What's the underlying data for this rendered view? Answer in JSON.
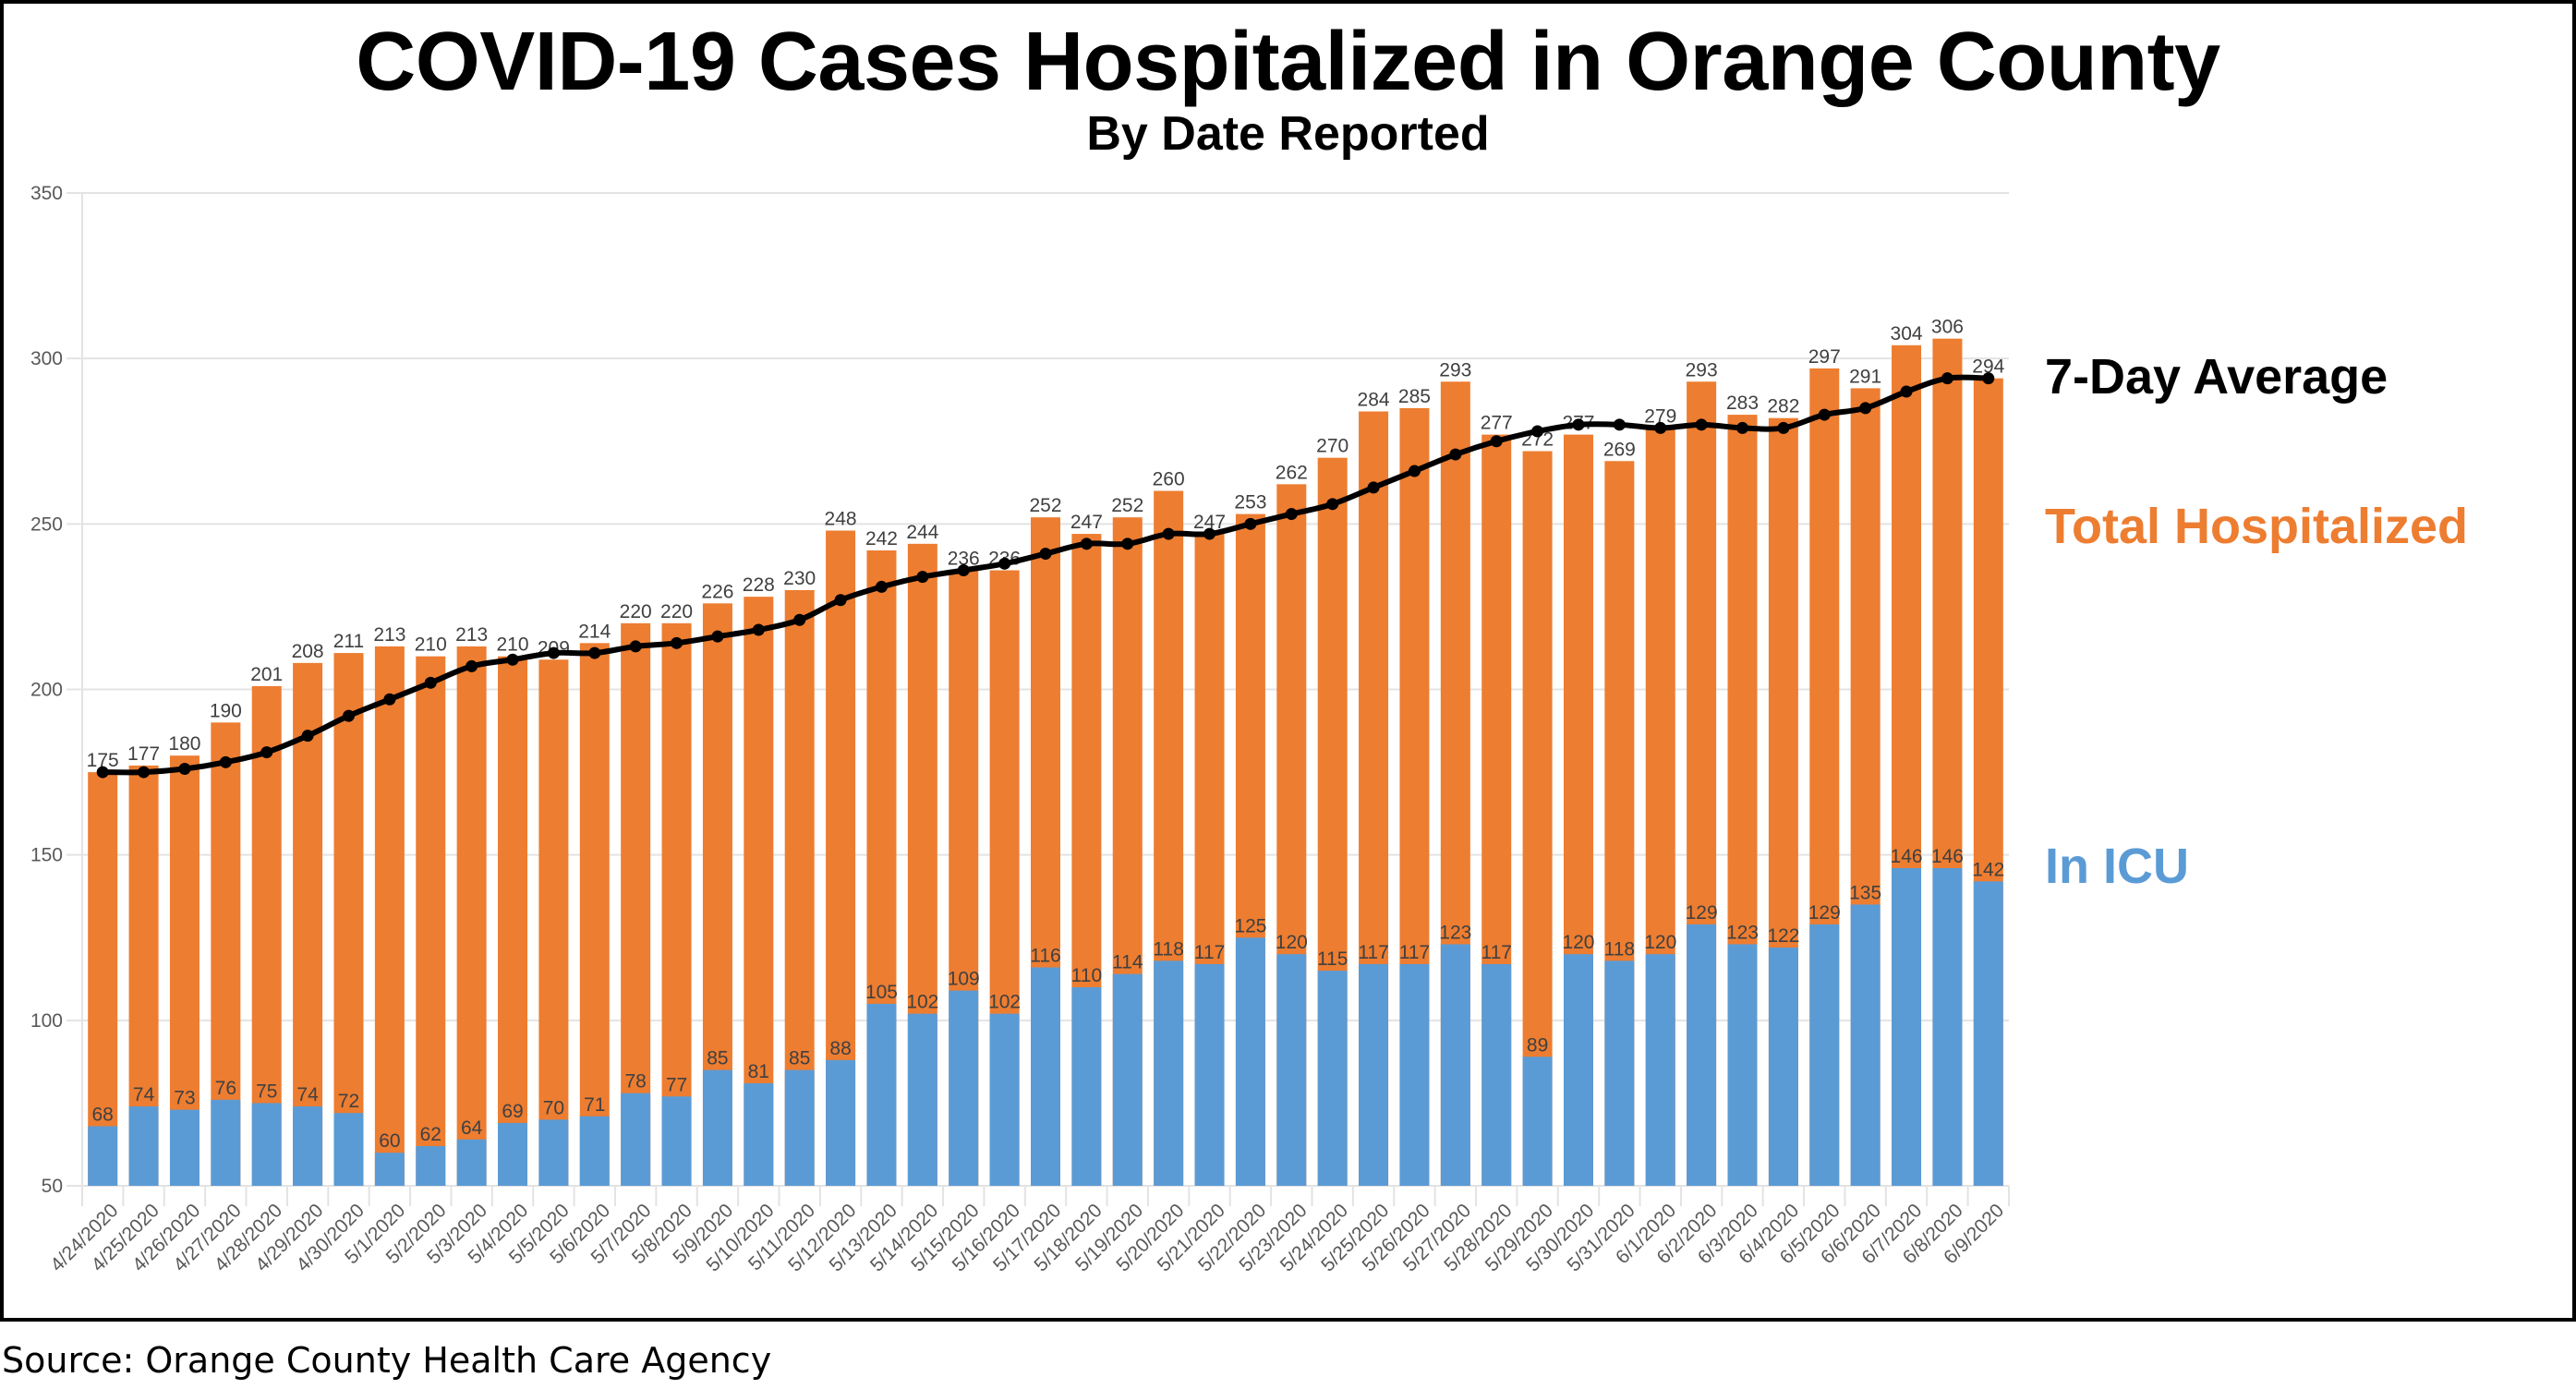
{
  "chart_data": {
    "type": "bar",
    "stacked": true,
    "title": "COVID-19 Cases Hospitalized in Orange County",
    "subtitle": "By Date Reported",
    "xlabel": "",
    "ylabel": "",
    "ylim": [
      50,
      350
    ],
    "yticks": [
      50,
      100,
      150,
      200,
      250,
      300,
      350
    ],
    "grid": true,
    "legend_position": "right",
    "categories": [
      "4/24/2020",
      "4/25/2020",
      "4/26/2020",
      "4/27/2020",
      "4/28/2020",
      "4/29/2020",
      "4/30/2020",
      "5/1/2020",
      "5/2/2020",
      "5/3/2020",
      "5/4/2020",
      "5/5/2020",
      "5/6/2020",
      "5/7/2020",
      "5/8/2020",
      "5/9/2020",
      "5/10/2020",
      "5/11/2020",
      "5/12/2020",
      "5/13/2020",
      "5/14/2020",
      "5/15/2020",
      "5/16/2020",
      "5/17/2020",
      "5/18/2020",
      "5/19/2020",
      "5/20/2020",
      "5/21/2020",
      "5/22/2020",
      "5/23/2020",
      "5/24/2020",
      "5/25/2020",
      "5/26/2020",
      "5/27/2020",
      "5/28/2020",
      "5/29/2020",
      "5/30/2020",
      "5/31/2020",
      "6/1/2020",
      "6/2/2020",
      "6/3/2020",
      "6/4/2020",
      "6/5/2020",
      "6/6/2020",
      "6/7/2020",
      "6/8/2020",
      "6/9/2020"
    ],
    "series": [
      {
        "name": "Total Hospitalized",
        "type": "bar",
        "color": "#ED7D31",
        "values": [
          175,
          177,
          180,
          190,
          201,
          208,
          211,
          213,
          210,
          213,
          210,
          209,
          214,
          220,
          220,
          226,
          228,
          230,
          248,
          242,
          244,
          236,
          236,
          252,
          247,
          252,
          260,
          247,
          253,
          262,
          270,
          284,
          285,
          293,
          277,
          272,
          277,
          269,
          279,
          293,
          283,
          282,
          297,
          291,
          304,
          306,
          294
        ]
      },
      {
        "name": "In ICU",
        "type": "bar",
        "color": "#5B9BD5",
        "values": [
          68,
          74,
          73,
          76,
          75,
          74,
          72,
          60,
          62,
          64,
          69,
          70,
          71,
          78,
          77,
          85,
          81,
          85,
          88,
          105,
          102,
          109,
          102,
          116,
          110,
          114,
          118,
          117,
          125,
          120,
          115,
          117,
          117,
          123,
          117,
          89,
          120,
          118,
          120,
          129,
          123,
          122,
          129,
          135,
          146,
          146,
          142
        ]
      },
      {
        "name": "7-Day Average",
        "type": "line",
        "color": "#000000",
        "values": [
          175,
          175,
          176,
          178,
          181,
          186,
          192,
          197,
          202,
          207,
          209,
          211,
          211,
          213,
          214,
          216,
          218,
          221,
          227,
          231,
          234,
          236,
          238,
          241,
          244,
          244,
          247,
          247,
          250,
          253,
          256,
          261,
          266,
          271,
          275,
          278,
          280,
          280,
          279,
          280,
          279,
          279,
          283,
          285,
          290,
          294,
          294
        ]
      }
    ]
  },
  "legend": {
    "average_label": "7-Day Average",
    "total_label": "Total Hospitalized",
    "icu_label": "In ICU"
  },
  "source": "Source: Orange County Health Care Agency",
  "colors": {
    "total": "#ED7D31",
    "icu": "#5B9BD5",
    "average": "#000000",
    "grid": "#E3E3E3",
    "axis_text": "#595959",
    "label_text": "#404040"
  }
}
